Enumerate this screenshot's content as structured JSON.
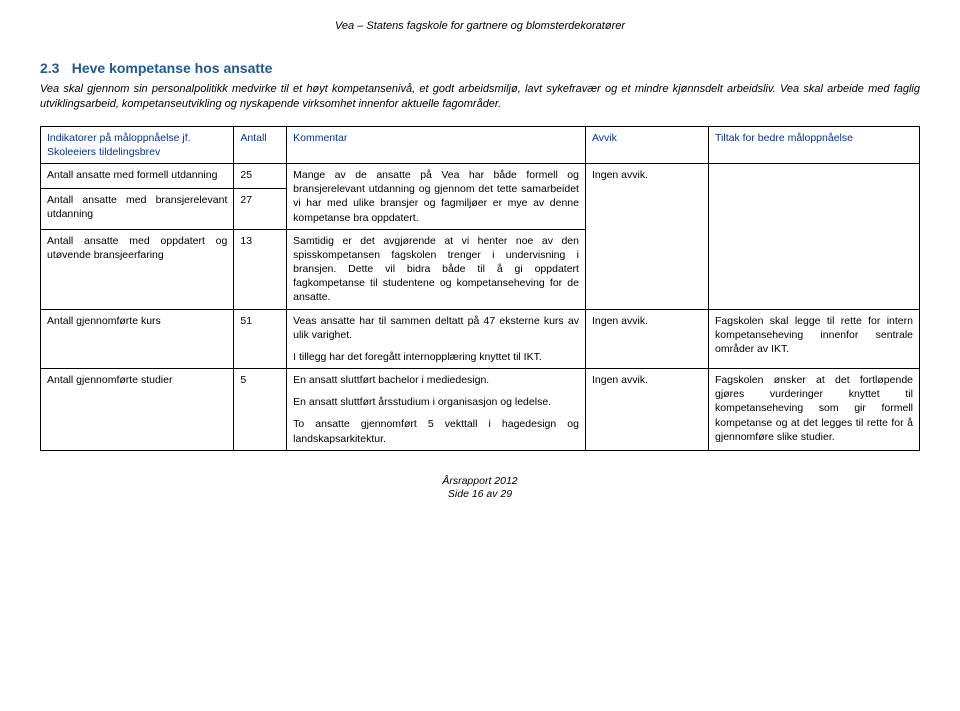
{
  "header": "Vea – Statens fagskole for gartnere og blomsterdekoratører",
  "section": {
    "number": "2.3",
    "title": "Heve kompetanse hos ansatte"
  },
  "intro": "Vea skal gjennom sin personalpolitikk medvirke til et høyt kompetansenivå, et godt arbeidsmiljø, lavt sykefravær og et mindre kjønnsdelt arbeidsliv. Vea skal arbeide med faglig utviklingsarbeid, kompetanseutvikling og nyskapende virksomhet innenfor aktuelle fagområder.",
  "table": {
    "head": {
      "c1": "Indikatorer på måloppnåelse jf. Skoleeiers tildelingsbrev",
      "c2": "Antall",
      "c3": "Kommentar",
      "c4": "Avvik",
      "c5": "Tiltak for bedre måloppnåelse"
    },
    "r1": {
      "c1": "Antall ansatte med formell utdanning",
      "c2": "25",
      "c4": "Ingen avvik."
    },
    "r2": {
      "c1": "Antall ansatte med bransjerelevant utdanning",
      "c2": "27",
      "c3": "Mange av de ansatte på Vea har både formell og bransjerelevant utdanning og gjennom det tette samarbeidet vi har med ulike bransjer og fagmiljøer er mye av denne kompetanse bra oppdatert."
    },
    "r3": {
      "c1": "Antall ansatte med oppdatert og utøvende bransjeerfaring",
      "c2": "13",
      "c3": "Samtidig er det avgjørende at vi henter noe av den spisskompetansen fagskolen trenger i undervisning i bransjen. Dette vil bidra både til å gi oppdatert fagkompetanse til studentene og kompetanseheving for de ansatte."
    },
    "r4": {
      "c1": "Antall gjennomførte kurs",
      "c2": "51",
      "c3a": "Veas ansatte har til sammen deltatt på 47 eksterne kurs av ulik varighet.",
      "c3b": "I tillegg har det foregått internopplæring knyttet til IKT.",
      "c4": "Ingen avvik.",
      "c5": "Fagskolen skal legge til rette for intern kompetanseheving innenfor sentrale områder av IKT."
    },
    "r5": {
      "c1": "Antall gjennomførte studier",
      "c2": "5",
      "c3a": "En ansatt sluttført bachelor i mediedesign.",
      "c3b": "En ansatt sluttført årsstudium i organisasjon og ledelse.",
      "c3c": "To ansatte gjennomført 5 vekttall i hagedesign og landskapsarkitektur.",
      "c4": "Ingen avvik.",
      "c5": "Fagskolen ønsker at det fortløpende gjøres vurderinger knyttet til kompetanseheving som gir formell kompetanse og at det legges til rette for å gjennomføre slike studier."
    }
  },
  "footer": {
    "l1": "Årsrapport 2012",
    "l2": "Side 16 av 29"
  }
}
